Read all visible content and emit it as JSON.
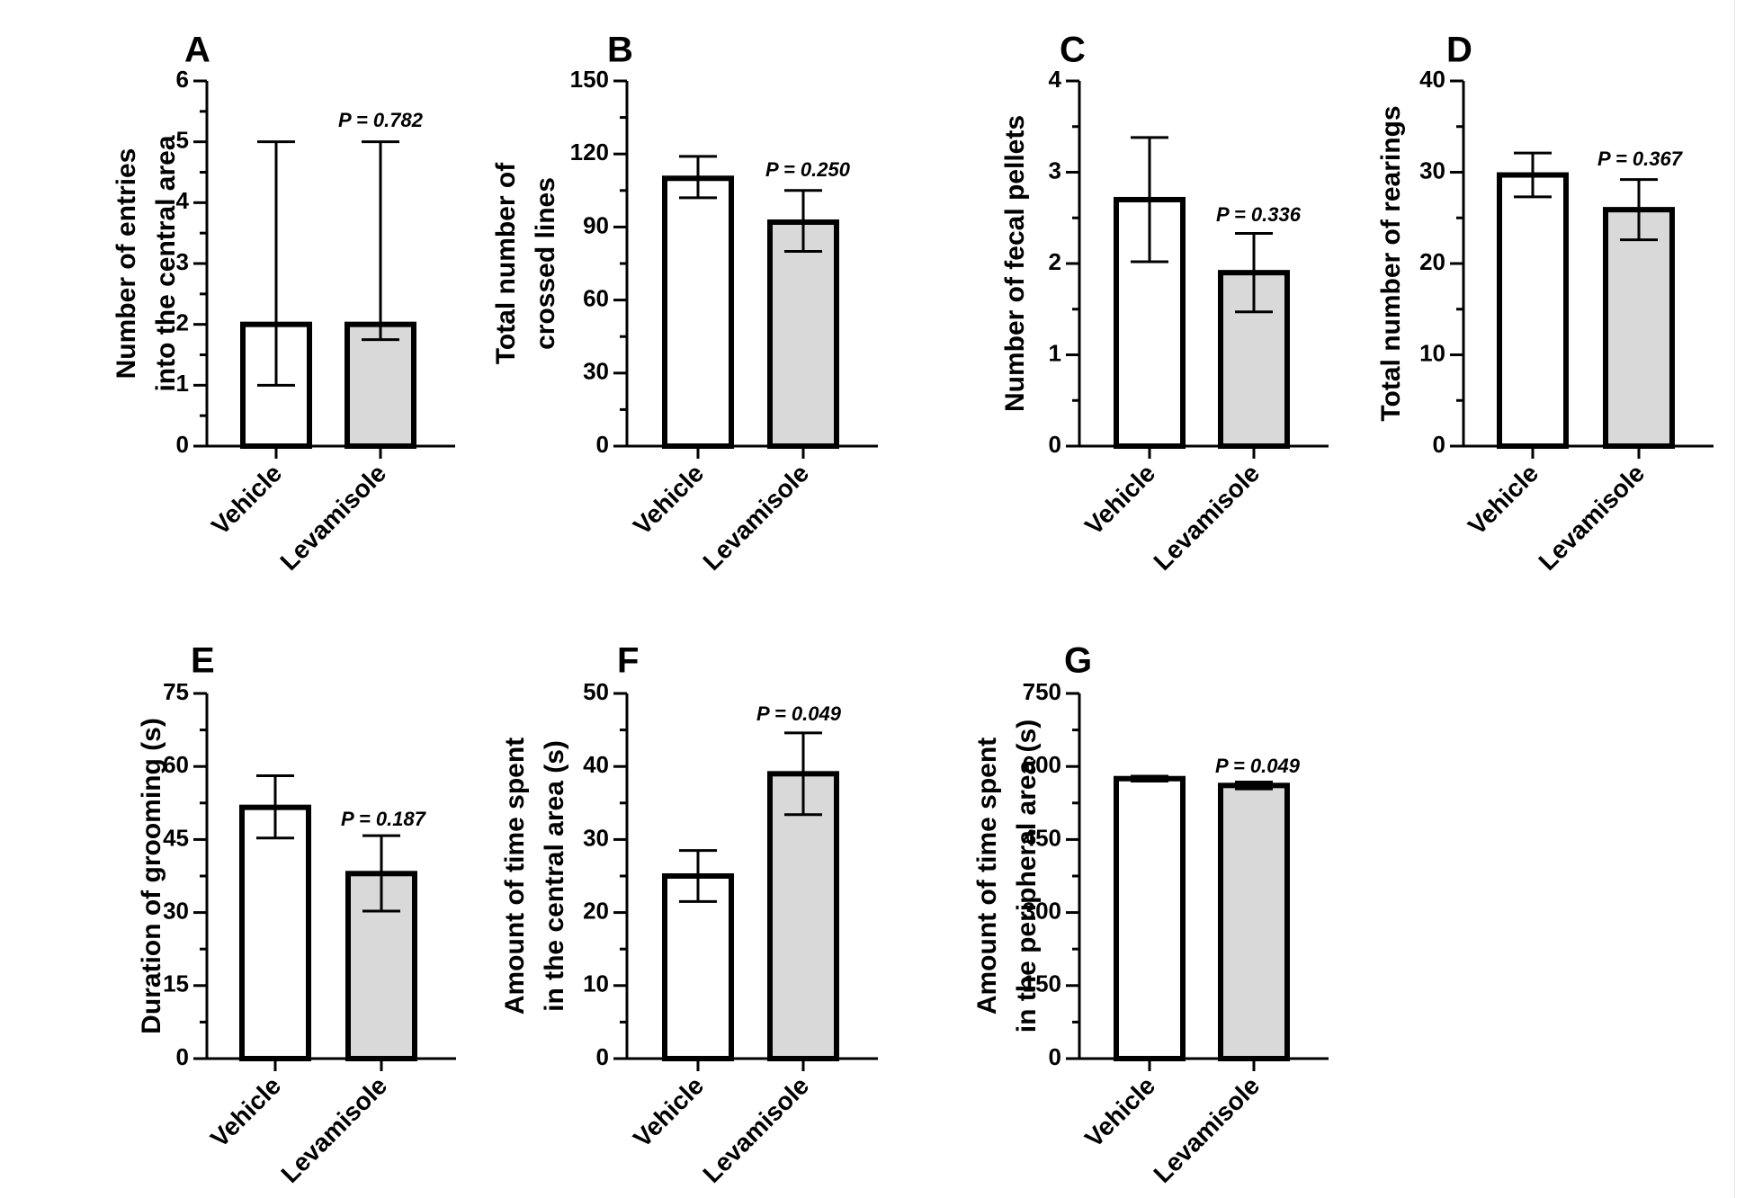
{
  "figure": {
    "colors": {
      "vehicle_fill": "#ffffff",
      "levamisole_fill": "#d9d9d9",
      "stroke": "#000000"
    }
  },
  "chart_data": [
    {
      "panel": "A",
      "type": "bar",
      "categories": [
        "Vehicle",
        "Levamisole"
      ],
      "values": [
        2,
        2
      ],
      "error_low": [
        1,
        1.75
      ],
      "error_high": [
        5,
        5
      ],
      "ylabel_lines": [
        "Number of entries",
        "into the central area"
      ],
      "ylim": [
        0,
        6
      ],
      "yticks": [
        0,
        1,
        2,
        3,
        4,
        5,
        6
      ],
      "p_value": "P = 0.782",
      "grid": false
    },
    {
      "panel": "B",
      "type": "bar",
      "categories": [
        "Vehicle",
        "Levamisole"
      ],
      "values": [
        110,
        92
      ],
      "error_low": [
        102,
        80
      ],
      "error_high": [
        119,
        105
      ],
      "ylabel_lines": [
        "Total number of",
        "crossed lines"
      ],
      "ylim": [
        0,
        150
      ],
      "yticks": [
        0,
        30,
        60,
        90,
        120,
        150
      ],
      "p_value": "P = 0.250",
      "grid": false
    },
    {
      "panel": "C",
      "type": "bar",
      "categories": [
        "Vehicle",
        "Levamisole"
      ],
      "values": [
        2.7,
        1.9
      ],
      "error_low": [
        2.02,
        1.47
      ],
      "error_high": [
        3.38,
        2.33
      ],
      "ylabel_lines": [
        "Number of fecal pellets"
      ],
      "ylim": [
        0,
        4
      ],
      "yticks": [
        0,
        1,
        2,
        3,
        4
      ],
      "p_value": "P = 0.336",
      "grid": false
    },
    {
      "panel": "D",
      "type": "bar",
      "categories": [
        "Vehicle",
        "Levamisole"
      ],
      "values": [
        29.7,
        25.9
      ],
      "error_low": [
        27.3,
        22.6
      ],
      "error_high": [
        32.1,
        29.2
      ],
      "ylabel_lines": [
        "Total number of rearings"
      ],
      "ylim": [
        0,
        40
      ],
      "yticks": [
        0,
        10,
        20,
        30,
        40
      ],
      "p_value": "P = 0.367",
      "grid": false
    },
    {
      "panel": "E",
      "type": "bar",
      "categories": [
        "Vehicle",
        "Levamisole"
      ],
      "values": [
        51.6,
        38
      ],
      "error_low": [
        45.3,
        30.3
      ],
      "error_high": [
        58.1,
        45.8
      ],
      "ylabel_lines": [
        "Duration of grooming (s)"
      ],
      "ylim": [
        0,
        75
      ],
      "yticks": [
        0,
        15,
        30,
        45,
        60,
        75
      ],
      "p_value": "P = 0.187",
      "grid": false
    },
    {
      "panel": "F",
      "type": "bar",
      "categories": [
        "Vehicle",
        "Levamisole"
      ],
      "values": [
        25,
        39
      ],
      "error_low": [
        21.5,
        33.4
      ],
      "error_high": [
        28.5,
        44.6
      ],
      "ylabel_lines": [
        "Amount of time spent",
        "in the central area (s)"
      ],
      "ylim": [
        0,
        50
      ],
      "yticks": [
        0,
        10,
        20,
        30,
        40,
        50
      ],
      "p_value": "P = 0.049",
      "grid": false
    },
    {
      "panel": "G",
      "type": "bar",
      "categories": [
        "Vehicle",
        "Levamisole"
      ],
      "values": [
        575,
        561
      ],
      "error_low": [
        570,
        554
      ],
      "error_high": [
        580,
        568
      ],
      "ylabel_lines": [
        "Amount of time spent",
        "in the peripheral area (s)"
      ],
      "ylim": [
        0,
        750
      ],
      "yticks": [
        0,
        150,
        300,
        450,
        600,
        750
      ],
      "p_value": "P = 0.049",
      "grid": false
    }
  ]
}
